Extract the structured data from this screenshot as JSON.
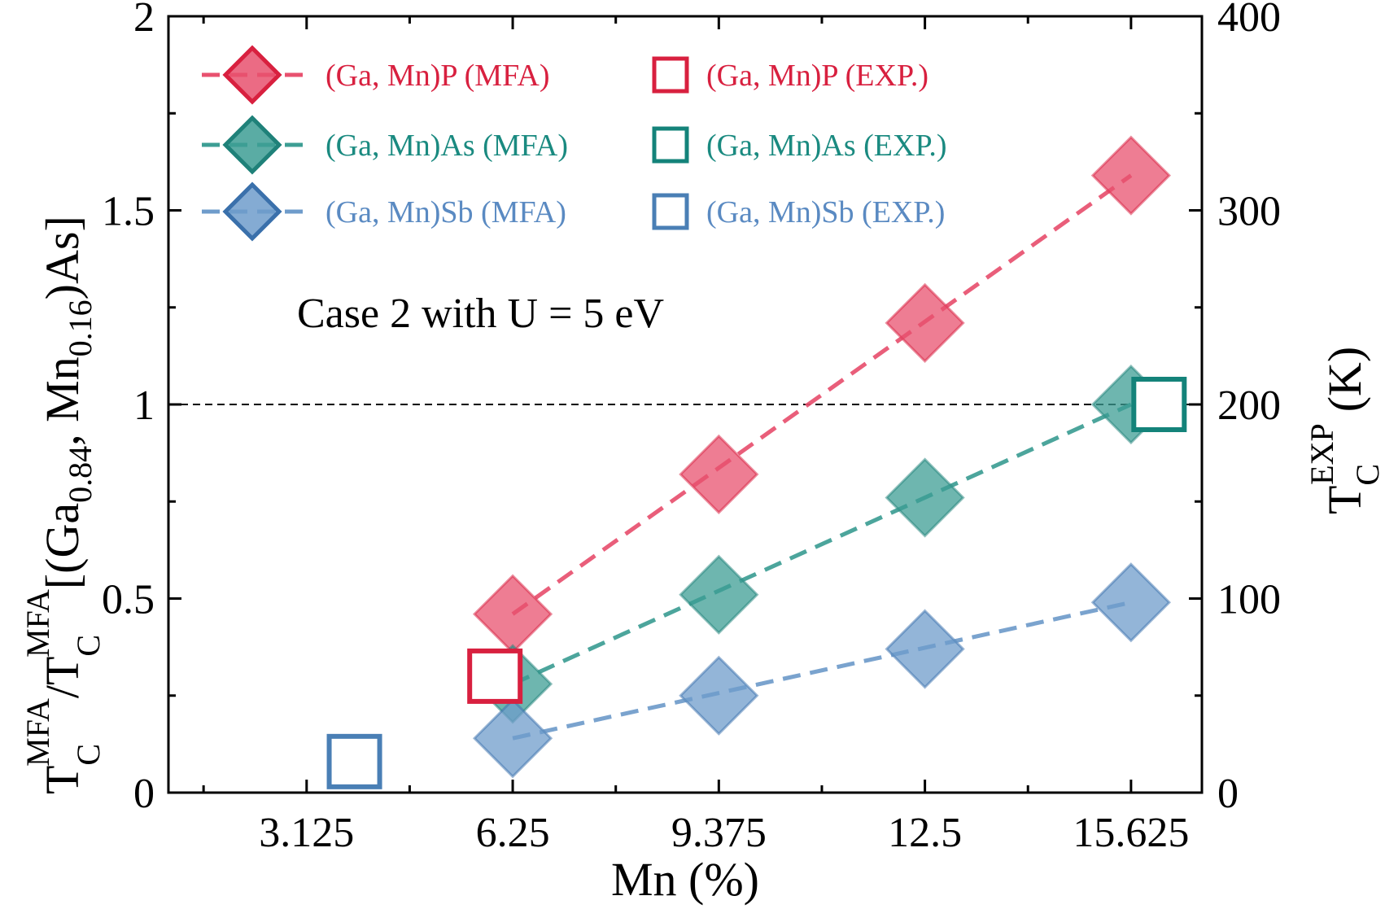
{
  "chart_data": {
    "type": "scatter",
    "x_ticks": [
      3.125,
      6.25,
      9.375,
      12.5,
      15.625
    ],
    "x_tick_labels": [
      "3.125",
      "6.25",
      "9.375",
      "12.5",
      "15.625"
    ],
    "xlim": [
      1.03,
      16.7
    ],
    "xlabel": "Mn (%)",
    "ylim_left": [
      0,
      2
    ],
    "y_ticks_left": [
      0,
      0.5,
      1,
      1.5,
      2
    ],
    "y_tick_labels_left": [
      "0",
      "0.5",
      "1",
      "1.5",
      "2"
    ],
    "ylabel_left": {
      "T1": "T",
      "sub1": "C",
      "sup1": "MFA",
      "slash": "/",
      "T2": "T",
      "sub2": "C",
      "sup2": "MFA",
      "rest1": "[(Ga",
      "sub3": "0.84",
      "rest2": ", Mn",
      "sub4": "0.16",
      "rest3": ")As]"
    },
    "ylim_right": [
      0,
      400
    ],
    "y_ticks_right": [
      0,
      100,
      200,
      300,
      400
    ],
    "y_tick_labels_right": [
      "0",
      "100",
      "200",
      "300",
      "400"
    ],
    "ylabel_right": {
      "T": "T",
      "sub": "C",
      "sup": "EXP",
      "unit": "(K)"
    },
    "reference_line": {
      "y": 1,
      "style": "dashed"
    },
    "annotation": "Case 2 with U = 5 eV",
    "mfa_series": [
      {
        "name": "(Ga, Mn)P (MFA)",
        "color": "#e8516f",
        "edge": "#d8203f",
        "text_color": "#d8203f",
        "x": [
          6.25,
          9.375,
          12.5,
          15.625
        ],
        "y": [
          0.46,
          0.82,
          1.21,
          1.59
        ]
      },
      {
        "name": "(Ga, Mn)As (MFA)",
        "color": "#3d9e94",
        "edge": "#1f8179",
        "text_color": "#1a8a80",
        "x": [
          6.25,
          9.375,
          12.5,
          15.625
        ],
        "y": [
          0.28,
          0.51,
          0.76,
          1.0
        ]
      },
      {
        "name": "(Ga, Mn)Sb (MFA)",
        "color": "#6f9ccb",
        "edge": "#3a70ab",
        "text_color": "#5a8ac2",
        "x": [
          6.25,
          9.375,
          12.5,
          15.625
        ],
        "y": [
          0.14,
          0.25,
          0.37,
          0.49
        ]
      }
    ],
    "exp_series": [
      {
        "name": "(Ga, Mn)P (EXP.)",
        "color": "#d8203f",
        "text_color": "#d8203f",
        "x": [
          5.98
        ],
        "tc_K": [
          60
        ]
      },
      {
        "name": "(Ga, Mn)As (EXP.)",
        "color": "#14837a",
        "text_color": "#1a8a80",
        "x": [
          16.05
        ],
        "tc_K": [
          200
        ]
      },
      {
        "name": "(Ga, Mn)Sb (EXP.)",
        "color": "#4a7fb5",
        "text_color": "#5a8ac2",
        "x": [
          3.85
        ],
        "tc_K": [
          16
        ]
      }
    ],
    "legend_position": "top-left"
  }
}
